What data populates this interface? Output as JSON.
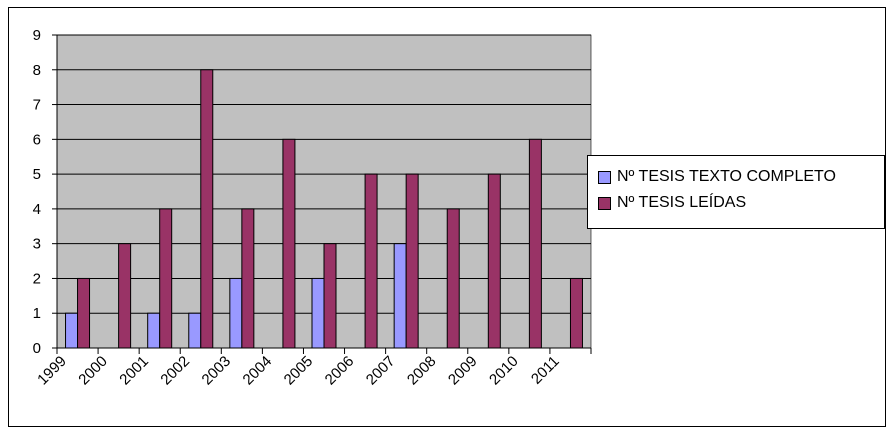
{
  "chart_data": {
    "type": "bar",
    "title": "",
    "xlabel": "",
    "ylabel": "",
    "categories": [
      "1999",
      "2000",
      "2001",
      "2002",
      "2003",
      "2004",
      "2005",
      "2006",
      "2007",
      "2008",
      "2009",
      "2010",
      "2011"
    ],
    "series": [
      {
        "name": "Nº TESIS TEXTO COMPLETO",
        "values": [
          1,
          0,
          1,
          1,
          2,
          0,
          2,
          0,
          3,
          0,
          0,
          0,
          0
        ],
        "color": "#9999ff"
      },
      {
        "name": "Nº TESIS LEÍDAS",
        "values": [
          2,
          3,
          4,
          8,
          4,
          6,
          3,
          5,
          5,
          4,
          5,
          6,
          2
        ],
        "color": "#993366"
      }
    ],
    "ylim": [
      0,
      9
    ],
    "yticks": [
      "0",
      "1",
      "2",
      "3",
      "4",
      "5",
      "6",
      "7",
      "8",
      "9"
    ],
    "grid": true,
    "plot_background": "#c0c0c0",
    "legend_position": "right"
  }
}
